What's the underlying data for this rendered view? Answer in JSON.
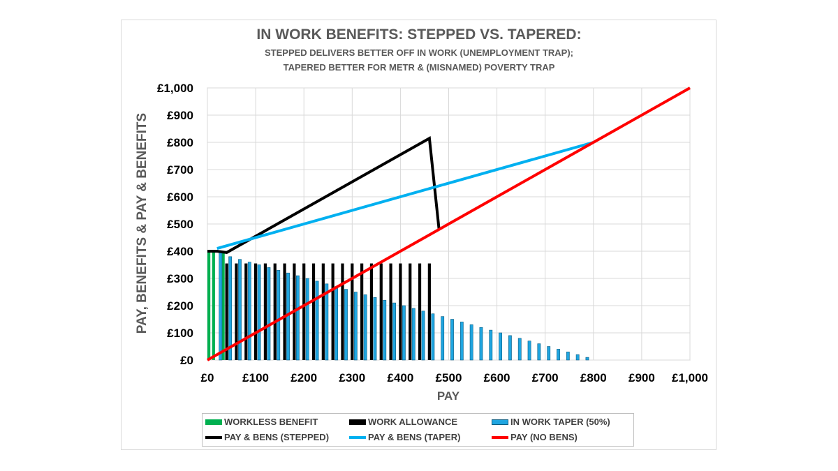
{
  "chart_data": {
    "type": "bar",
    "title": "IN WORK BENEFITS: STEPPED VS. TAPERED:",
    "subtitle_lines": [
      "STEPPED DELIVERS BETTER OFF IN WORK (UNEMPLOYMENT TRAP);",
      "TAPERED BETTER FOR METR &  (MISNAMED) POVERTY TRAP"
    ],
    "xlabel": "PAY",
    "ylabel": "PAY, BENEFITS & PAY & BENEFITS",
    "xlim": [
      0,
      1000
    ],
    "ylim": [
      0,
      1000
    ],
    "x_ticks": [
      "£0",
      "£100",
      "£200",
      "£300",
      "£400",
      "£500",
      "£600",
      "£700",
      "£800",
      "£900",
      "£1,000"
    ],
    "y_ticks": [
      "£0",
      "£100",
      "£200",
      "£300",
      "£400",
      "£500",
      "£600",
      "£700",
      "£800",
      "£900",
      "£1,000"
    ],
    "grid": true,
    "legend_position": "bottom",
    "bar_series": [
      {
        "name": "WORKLESS BENEFIT",
        "color": "#00b050",
        "points": [
          [
            0,
            400
          ],
          [
            20,
            400
          ],
          [
            40,
            400
          ]
        ]
      },
      {
        "name": "WORK ALLOWANCE",
        "color": "#000000",
        "points": [
          [
            40,
            355
          ],
          [
            60,
            355
          ],
          [
            80,
            355
          ],
          [
            100,
            355
          ],
          [
            120,
            355
          ],
          [
            140,
            355
          ],
          [
            160,
            355
          ],
          [
            180,
            355
          ],
          [
            200,
            355
          ],
          [
            220,
            355
          ],
          [
            240,
            355
          ],
          [
            260,
            355
          ],
          [
            280,
            355
          ],
          [
            300,
            355
          ],
          [
            320,
            355
          ],
          [
            340,
            355
          ],
          [
            360,
            355
          ],
          [
            380,
            355
          ],
          [
            400,
            355
          ],
          [
            420,
            355
          ],
          [
            440,
            355
          ],
          [
            460,
            355
          ]
        ]
      },
      {
        "name": "IN WORK TAPER (50%)",
        "color": "#1fa5e0",
        "points": [
          [
            20,
            400
          ],
          [
            40,
            380
          ],
          [
            60,
            370
          ],
          [
            80,
            360
          ],
          [
            100,
            350
          ],
          [
            120,
            340
          ],
          [
            140,
            330
          ],
          [
            160,
            320
          ],
          [
            180,
            310
          ],
          [
            200,
            300
          ],
          [
            220,
            290
          ],
          [
            240,
            280
          ],
          [
            260,
            270
          ],
          [
            280,
            260
          ],
          [
            300,
            250
          ],
          [
            320,
            240
          ],
          [
            340,
            230
          ],
          [
            360,
            220
          ],
          [
            380,
            210
          ],
          [
            400,
            200
          ],
          [
            420,
            190
          ],
          [
            440,
            180
          ],
          [
            460,
            170
          ],
          [
            480,
            160
          ],
          [
            500,
            150
          ],
          [
            520,
            140
          ],
          [
            540,
            130
          ],
          [
            560,
            120
          ],
          [
            580,
            110
          ],
          [
            600,
            100
          ],
          [
            620,
            90
          ],
          [
            640,
            80
          ],
          [
            660,
            70
          ],
          [
            680,
            60
          ],
          [
            700,
            50
          ],
          [
            720,
            40
          ],
          [
            740,
            30
          ],
          [
            760,
            20
          ],
          [
            780,
            10
          ]
        ]
      }
    ],
    "line_series": [
      {
        "name": "PAY & BENS (STEPPED)",
        "color": "#000000",
        "points": [
          [
            0,
            400
          ],
          [
            20,
            400
          ],
          [
            40,
            395
          ],
          [
            460,
            815
          ],
          [
            480,
            480
          ]
        ]
      },
      {
        "name": "PAY & BENS (TAPER)",
        "color": "#00b0f0",
        "points": [
          [
            20,
            410
          ],
          [
            800,
            800
          ]
        ]
      },
      {
        "name": "PAY (NO BENS)",
        "color": "#ff0000",
        "points": [
          [
            0,
            0
          ],
          [
            1000,
            1000
          ]
        ]
      }
    ]
  },
  "legend": {
    "items": [
      {
        "label": "WORKLESS BENEFIT",
        "kind": "bar",
        "color": "#00b050"
      },
      {
        "label": "WORK ALLOWANCE",
        "kind": "bar",
        "color": "#000000"
      },
      {
        "label": "IN WORK TAPER (50%)",
        "kind": "bar",
        "color": "#1fa5e0"
      },
      {
        "label": "PAY & BENS (STEPPED)",
        "kind": "line",
        "color": "#000000"
      },
      {
        "label": "PAY & BENS (TAPER)",
        "kind": "line",
        "color": "#00b0f0"
      },
      {
        "label": "PAY (NO BENS)",
        "kind": "line",
        "color": "#ff0000"
      }
    ]
  }
}
